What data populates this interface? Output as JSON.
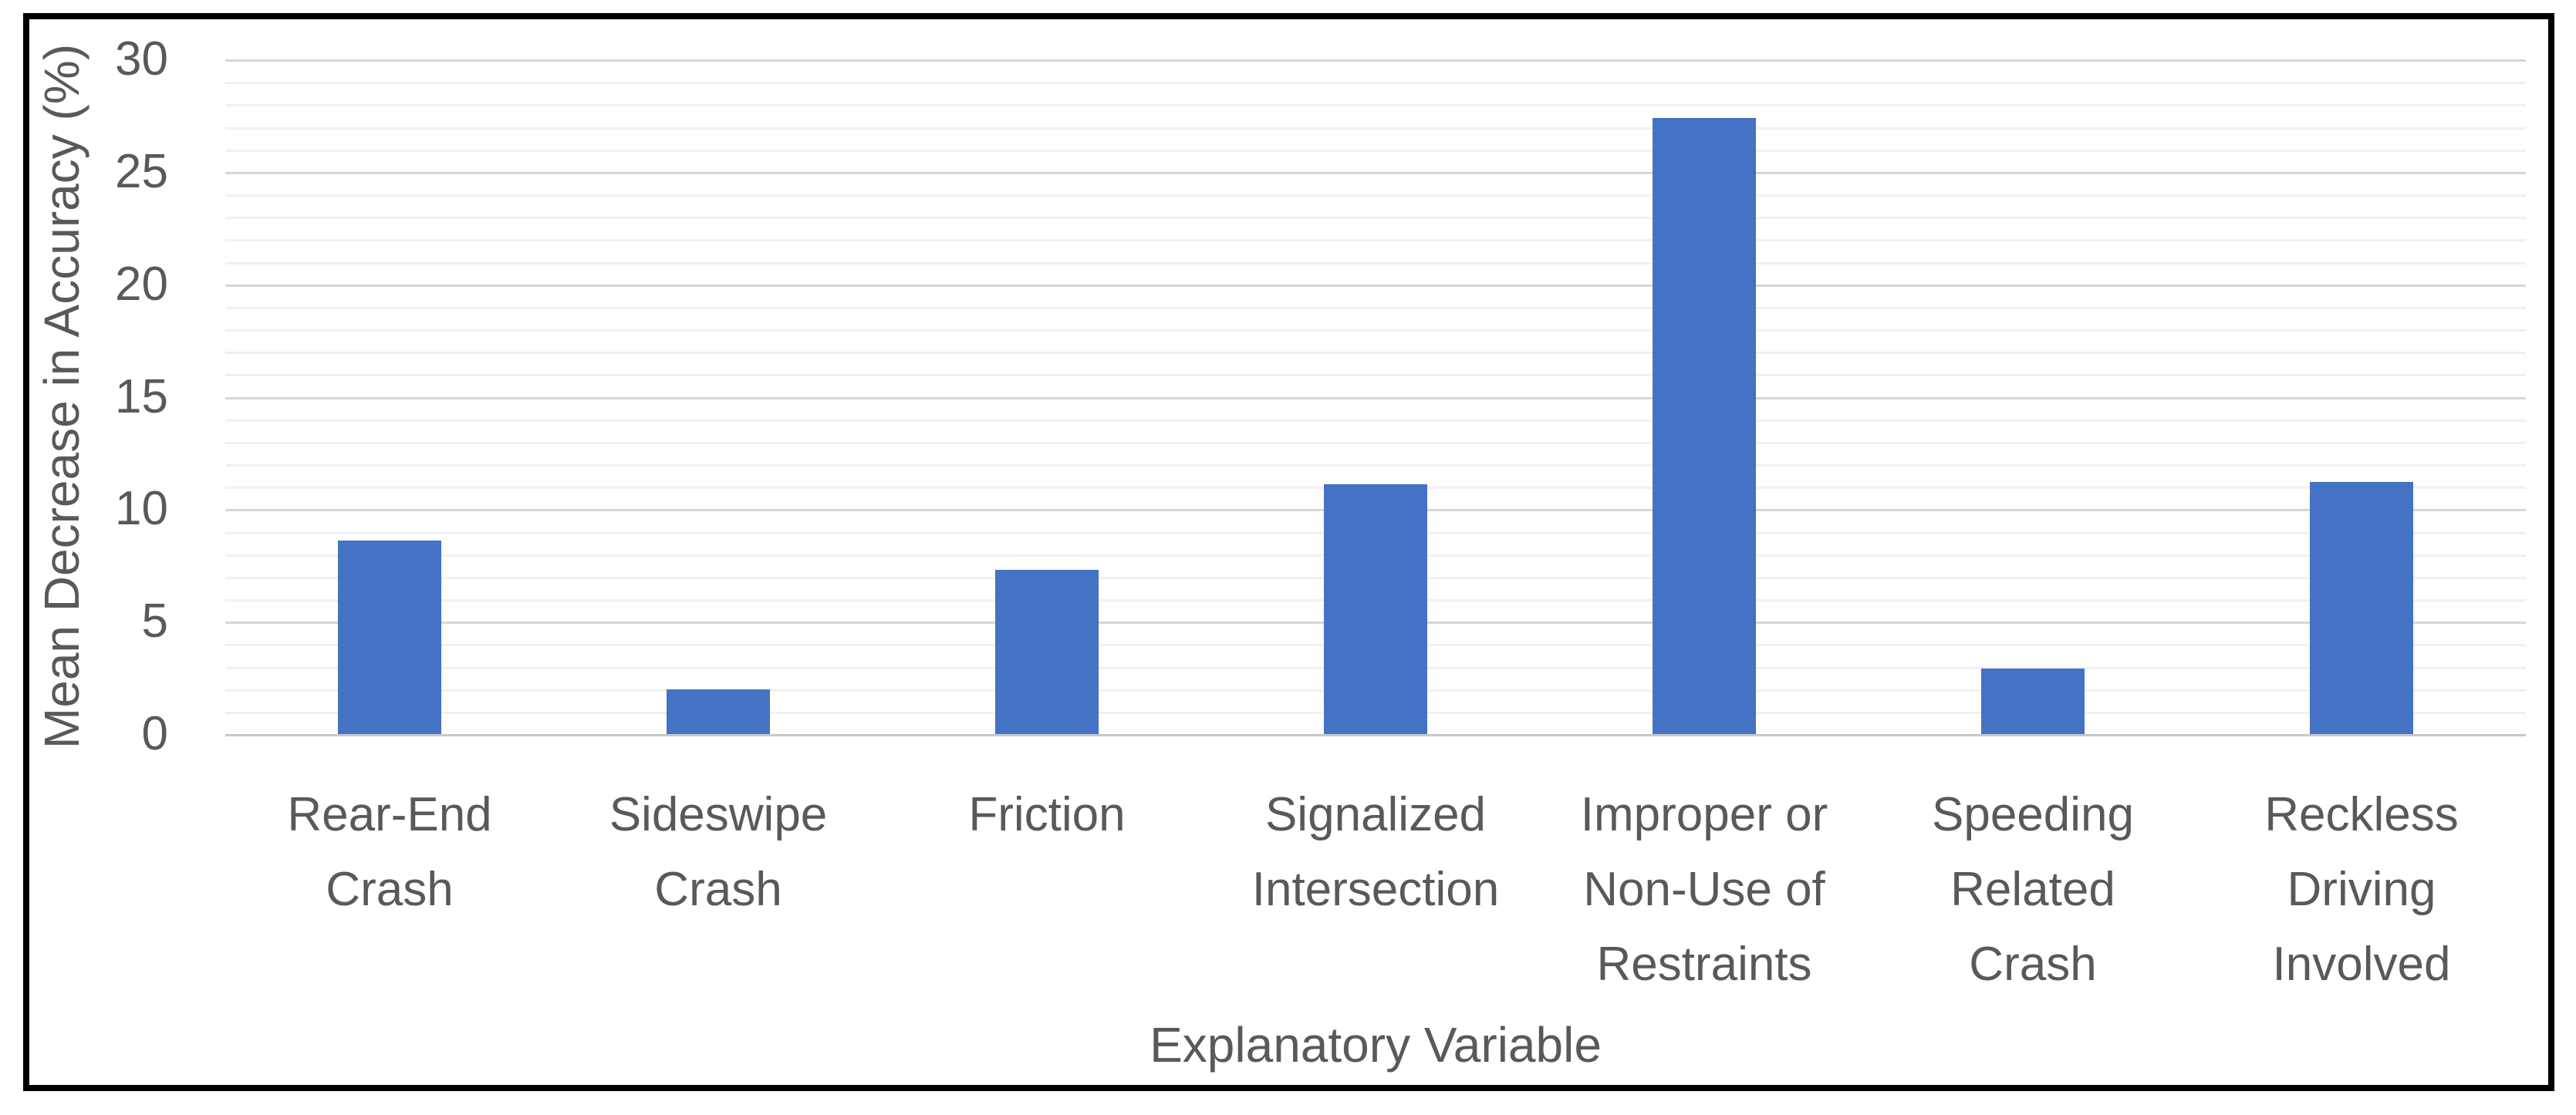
{
  "chart_data": {
    "type": "bar",
    "title": "",
    "categories": [
      "Rear-End Crash",
      "Sideswipe Crash",
      "Friction",
      "Signalized Intersection",
      "Improper or Non-Use of Restraints",
      "Speeding Related Crash",
      "Reckless Driving Involved"
    ],
    "wrapped_labels": [
      "Rear-End\nCrash",
      "Sideswipe\nCrash",
      "Friction",
      "Signalized\nIntersection",
      "Improper or\nNon-Use of\nRestraints",
      "Speeding\nRelated\nCrash",
      "Reckless\nDriving\nInvolved"
    ],
    "values": [
      8.6,
      2.0,
      7.3,
      11.1,
      27.4,
      2.9,
      11.2
    ],
    "xlabel": "Explanatory Variable",
    "ylabel": "Mean Decrease in Accuracy (%)",
    "ylim": [
      0,
      30
    ],
    "yticks": [
      0,
      5,
      10,
      15,
      20,
      25,
      30
    ],
    "minor_grid_step": 1,
    "major_grid_step": 5,
    "grid": "on",
    "legend": "none",
    "colors": {
      "bar_fill": "#4472C4",
      "text": "#595959",
      "major_gridline": "#d6d6d6",
      "minor_gridline": "#f0f0f0",
      "axis_line": "#c8c8c8",
      "border": "#000000",
      "background": "#ffffff"
    }
  }
}
